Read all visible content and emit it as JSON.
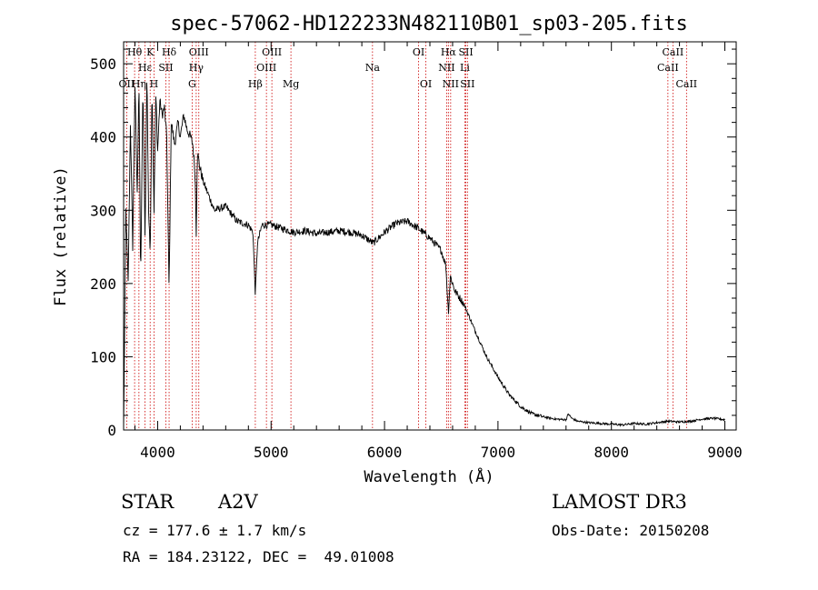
{
  "chart_data": {
    "type": "line",
    "title": "spec-57062-HD122233N482110B01_sp03-205.fits",
    "xlabel": "Wavelength (Å)",
    "ylabel": "Flux (relative)",
    "xlim": [
      3700,
      9100
    ],
    "ylim": [
      0,
      530
    ],
    "x_ticks": [
      4000,
      5000,
      6000,
      7000,
      8000,
      9000
    ],
    "x_tick_labels": [
      "4000",
      "5000",
      "6000",
      "7000",
      "8000",
      "9000"
    ],
    "y_ticks": [
      0,
      100,
      200,
      300,
      400,
      500
    ],
    "y_tick_labels": [
      "0",
      "100",
      "200",
      "300",
      "400",
      "500"
    ],
    "series": [
      {
        "name": "spectrum",
        "x": [
          3700,
          3720,
          3740,
          3760,
          3780,
          3800,
          3820,
          3835,
          3850,
          3870,
          3889,
          3905,
          3920,
          3934,
          3950,
          3968,
          3985,
          4000,
          4020,
          4040,
          4060,
          4080,
          4101,
          4120,
          4150,
          4180,
          4200,
          4230,
          4260,
          4290,
          4310,
          4330,
          4340,
          4350,
          4370,
          4400,
          4450,
          4500,
          4600,
          4700,
          4800,
          4840,
          4861,
          4880,
          4920,
          5000,
          5100,
          5200,
          5300,
          5400,
          5500,
          5600,
          5700,
          5800,
          5900,
          6000,
          6100,
          6200,
          6300,
          6400,
          6500,
          6540,
          6563,
          6580,
          6620,
          6700,
          6800,
          6900,
          7000,
          7100,
          7200,
          7300,
          7400,
          7500,
          7600,
          7620,
          7650,
          7700,
          7800,
          7900,
          8000,
          8100,
          8200,
          8300,
          8400,
          8500,
          8600,
          8700,
          8800,
          8900,
          9000
        ],
        "y": [
          0,
          300,
          200,
          420,
          250,
          470,
          320,
          480,
          200,
          470,
          260,
          490,
          300,
          240,
          470,
          300,
          460,
          380,
          450,
          430,
          440,
          400,
          190,
          420,
          390,
          420,
          400,
          430,
          410,
          400,
          390,
          350,
          270,
          380,
          360,
          340,
          320,
          300,
          305,
          285,
          280,
          270,
          185,
          255,
          280,
          280,
          275,
          270,
          272,
          268,
          270,
          272,
          270,
          266,
          255,
          270,
          282,
          285,
          275,
          262,
          245,
          225,
          160,
          210,
          190,
          172,
          135,
          100,
          72,
          48,
          32,
          22,
          18,
          15,
          14,
          22,
          16,
          12,
          10,
          9,
          8,
          7,
          9,
          8,
          10,
          12,
          11,
          12,
          15,
          16,
          14
        ]
      }
    ],
    "lines": [
      {
        "label": "Hθ",
        "wave": 3797,
        "row": 1
      },
      {
        "label": "OII",
        "wave": 3727,
        "row": 3
      },
      {
        "label": "Hη",
        "wave": 3835,
        "row": 3
      },
      {
        "label": "Hε",
        "wave": 3889,
        "row": 2
      },
      {
        "label": "K",
        "wave": 3934,
        "row": 1
      },
      {
        "label": "H",
        "wave": 3968,
        "row": 3
      },
      {
        "label": "SII",
        "wave": 4072,
        "row": 2
      },
      {
        "label": "Hδ",
        "wave": 4101,
        "row": 1
      },
      {
        "label": "G",
        "wave": 4304,
        "row": 3
      },
      {
        "label": "Hγ",
        "wave": 4340,
        "row": 2
      },
      {
        "label": "OIII",
        "wave": 4363,
        "row": 1
      },
      {
        "label": "Hβ",
        "wave": 4861,
        "row": 3
      },
      {
        "label": "OIII",
        "wave": 4959,
        "row": 2
      },
      {
        "label": "OIII",
        "wave": 5007,
        "row": 1
      },
      {
        "label": "Mg",
        "wave": 5175,
        "row": 3
      },
      {
        "label": "Na",
        "wave": 5894,
        "row": 2
      },
      {
        "label": "OI",
        "wave": 6300,
        "row": 1
      },
      {
        "label": "OI",
        "wave": 6364,
        "row": 3
      },
      {
        "label": "NII",
        "wave": 6548,
        "row": 2
      },
      {
        "label": "Hα",
        "wave": 6563,
        "row": 1
      },
      {
        "label": "NII",
        "wave": 6583,
        "row": 3
      },
      {
        "label": "Li",
        "wave": 6708,
        "row": 2
      },
      {
        "label": "SII",
        "wave": 6717,
        "row": 1
      },
      {
        "label": "SII",
        "wave": 6731,
        "row": 3
      },
      {
        "label": "CaII",
        "wave": 8498,
        "row": 2
      },
      {
        "label": "CaII",
        "wave": 8542,
        "row": 1
      },
      {
        "label": "CaII",
        "wave": 8662,
        "row": 3
      }
    ]
  },
  "info": {
    "object_class": "STAR",
    "subclass": "A2V",
    "survey": "LAMOST DR3",
    "cz": "cz = 177.6 ± 1.7 km/s",
    "obs_date": "Obs-Date: 20150208",
    "coords": "RA = 184.23122, DEC =  49.01008"
  },
  "colors": {
    "spectrum": "#000000",
    "line_marker": "#cc0000",
    "axes": "#000000"
  }
}
